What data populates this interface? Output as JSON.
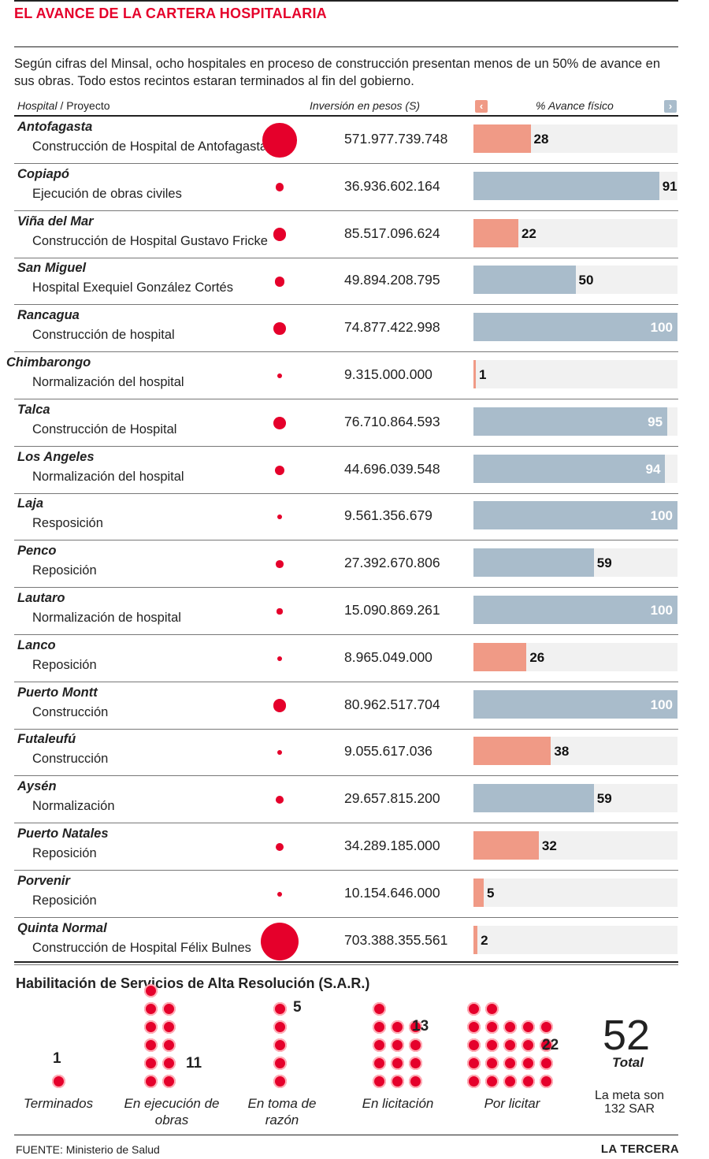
{
  "title": "EL AVANCE DE LA CARTERA HOSPITALARIA",
  "intro": "Según cifras del Minsal, ocho hospitales en proceso de construcción presentan menos de un 50% de avance en sus obras. Todo estos recintos estaran terminados al fin del gobierno.",
  "headers": {
    "hospital": "Hospital",
    "slash": "/",
    "proyecto": "Proyecto",
    "inversion": "Inversión en pesos (S)",
    "avance": "% Avance físico"
  },
  "icons": {
    "left": "chevron-left-icon",
    "right": "chevron-right-icon"
  },
  "colors": {
    "title": "#e5002b",
    "bubble": "#e5002b",
    "bar_low": "#f09a86",
    "bar_high": "#a9bccb",
    "track": "#f1f1f1"
  },
  "chart_data": {
    "type": "table",
    "columns": [
      "Hospital / Proyecto",
      "Inversión en pesos (S)",
      "% Avance físico"
    ],
    "bar_color_rule": "salmon when below 50%, blue-grey otherwise",
    "rows": [
      {
        "hospital": "Antofagasta",
        "proyecto": "Construcción de Hospital de Antofagasta",
        "inversion": "571.977.739.748",
        "inversion_value": 571977739748,
        "avance": 28
      },
      {
        "hospital": "Copiapó",
        "proyecto": "Ejecución de obras civiles",
        "inversion": "36.936.602.164",
        "inversion_value": 36936602164,
        "avance": 91
      },
      {
        "hospital": "Viña del Mar",
        "proyecto": "Construcción de Hospital Gustavo Fricke",
        "inversion": "85.517.096.624",
        "inversion_value": 85517096624,
        "avance": 22
      },
      {
        "hospital": "San Miguel",
        "proyecto": "Hospital Exequiel González Cortés",
        "inversion": "49.894.208.795",
        "inversion_value": 49894208795,
        "avance": 50
      },
      {
        "hospital": "Rancagua",
        "proyecto": "Construcción de hospital",
        "inversion": "74.877.422.998",
        "inversion_value": 74877422998,
        "avance": 100
      },
      {
        "hospital": "Chimbarongo",
        "proyecto": "Normalización del hospital",
        "inversion": "9.315.000.000",
        "inversion_value": 9315000000,
        "avance": 1
      },
      {
        "hospital": "Talca",
        "proyecto": "Construcción de Hospital",
        "inversion": "76.710.864.593",
        "inversion_value": 76710864593,
        "avance": 95
      },
      {
        "hospital": "Los Angeles",
        "proyecto": "Normalización del hospital",
        "inversion": "44.696.039.548",
        "inversion_value": 44696039548,
        "avance": 94
      },
      {
        "hospital": "Laja",
        "proyecto": "Resposición",
        "inversion": "9.561.356.679",
        "inversion_value": 9561356679,
        "avance": 100
      },
      {
        "hospital": "Penco",
        "proyecto": "Reposición",
        "inversion": "27.392.670.806",
        "inversion_value": 27392670806,
        "avance": 59
      },
      {
        "hospital": "Lautaro",
        "proyecto": "Normalización de hospital",
        "inversion": "15.090.869.261",
        "inversion_value": 15090869261,
        "avance": 100
      },
      {
        "hospital": "Lanco",
        "proyecto": "Reposición",
        "inversion": "8.965.049.000",
        "inversion_value": 8965049000,
        "avance": 26
      },
      {
        "hospital": "Puerto Montt",
        "proyecto": "Construcción",
        "inversion": "80.962.517.704",
        "inversion_value": 80962517704,
        "avance": 100
      },
      {
        "hospital": "Futaleufú",
        "proyecto": "Construcción",
        "inversion": "9.055.617.036",
        "inversion_value": 9055617036,
        "avance": 38
      },
      {
        "hospital": "Aysén",
        "proyecto": "Normalización",
        "inversion": "29.657.815.200",
        "inversion_value": 29657815200,
        "avance": 59
      },
      {
        "hospital": "Puerto Natales",
        "proyecto": "Reposición",
        "inversion": "34.289.185.000",
        "inversion_value": 34289185000,
        "avance": 32
      },
      {
        "hospital": "Porvenir",
        "proyecto": "Reposición",
        "inversion": "10.154.646.000",
        "inversion_value": 10154646000,
        "avance": 5
      },
      {
        "hospital": "Quinta Normal",
        "proyecto": "Construcción de Hospital Félix Bulnes",
        "inversion": "703.388.355.561",
        "inversion_value": 703388355561,
        "avance": 2
      }
    ]
  },
  "sar": {
    "title": "Habilitación de Servicios de Alta Resolución (S.A.R.)",
    "groups": [
      {
        "label": "Terminados",
        "count": 1
      },
      {
        "label": "En ejecución de obras",
        "count": 11
      },
      {
        "label": "En toma de razón",
        "count": 5
      },
      {
        "label": "En licitación",
        "count": 13
      },
      {
        "label": "Por licitar",
        "count": 22
      }
    ],
    "total": "52",
    "total_label": "Total",
    "meta": "La meta son 132 SAR"
  },
  "source": "FUENTE: Ministerio de Salud",
  "brand": "LA TERCERA"
}
